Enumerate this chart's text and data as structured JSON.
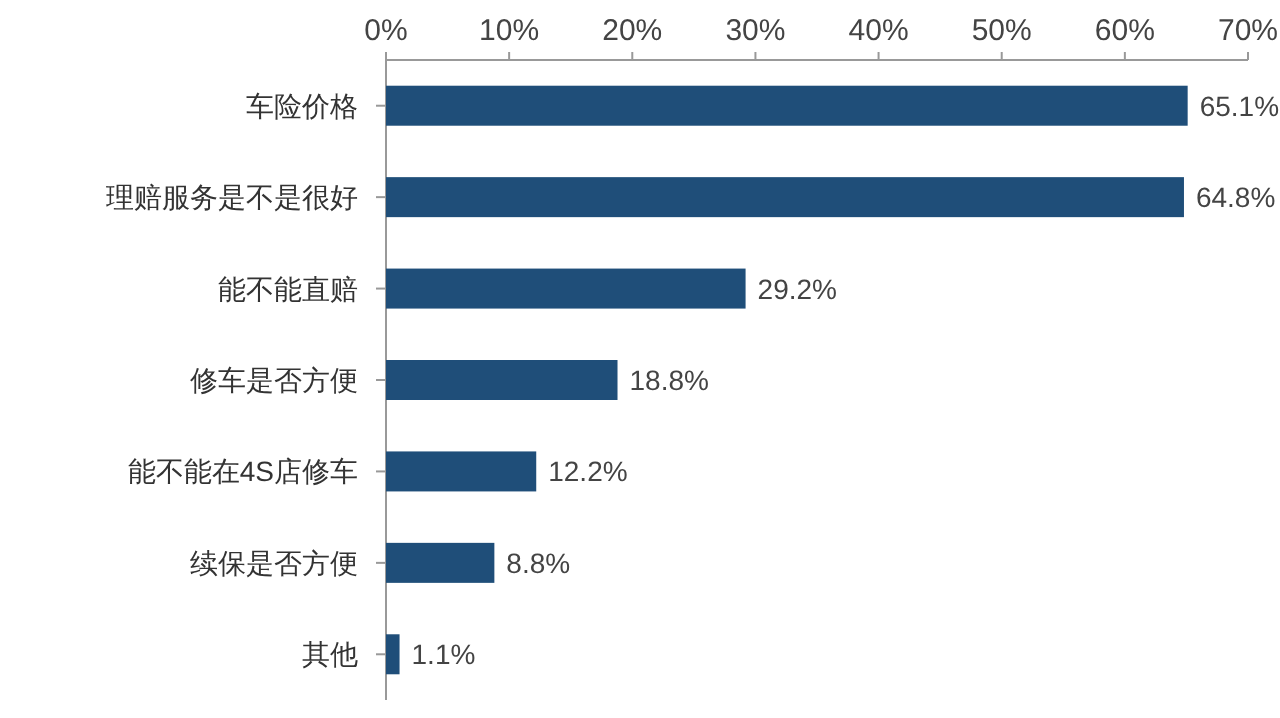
{
  "chart_data": {
    "type": "bar",
    "orientation": "horizontal",
    "categories": [
      "车险价格",
      "理赔服务是不是很好",
      "能不能直赔",
      "修车是否方便",
      "能不能在4S店修车",
      "续保是否方便",
      "其他"
    ],
    "values": [
      65.1,
      64.8,
      29.2,
      18.8,
      12.2,
      8.8,
      1.1
    ],
    "value_labels": [
      "65.1%",
      "64.8%",
      "29.2%",
      "18.8%",
      "12.2%",
      "8.8%",
      "1.1%"
    ],
    "color": "#1f4e79",
    "xlim": [
      0,
      70
    ],
    "xticks": [
      {
        "value": 0,
        "label": "0%"
      },
      {
        "value": 10,
        "label": "10%"
      },
      {
        "value": 20,
        "label": "20%"
      },
      {
        "value": 30,
        "label": "30%"
      },
      {
        "value": 40,
        "label": "40%"
      },
      {
        "value": 50,
        "label": "50%"
      },
      {
        "value": 60,
        "label": "60%"
      },
      {
        "value": 70,
        "label": "70%"
      }
    ]
  }
}
